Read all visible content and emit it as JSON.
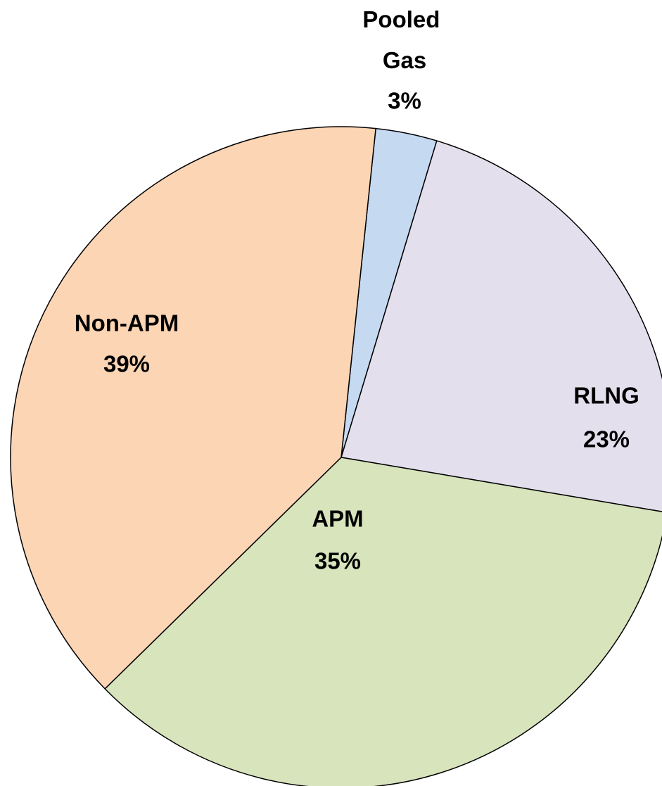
{
  "chart_data": {
    "type": "pie",
    "categories": [
      "Pooled Gas",
      "RLNG",
      "APM",
      "Non-APM"
    ],
    "values": [
      3,
      23,
      35,
      39
    ],
    "value_labels": [
      "3%",
      "23%",
      "35%",
      "39%"
    ],
    "colors": [
      "#c5d9f1",
      "#e4dfec",
      "#d8e4bc",
      "#fcd5b4"
    ]
  }
}
